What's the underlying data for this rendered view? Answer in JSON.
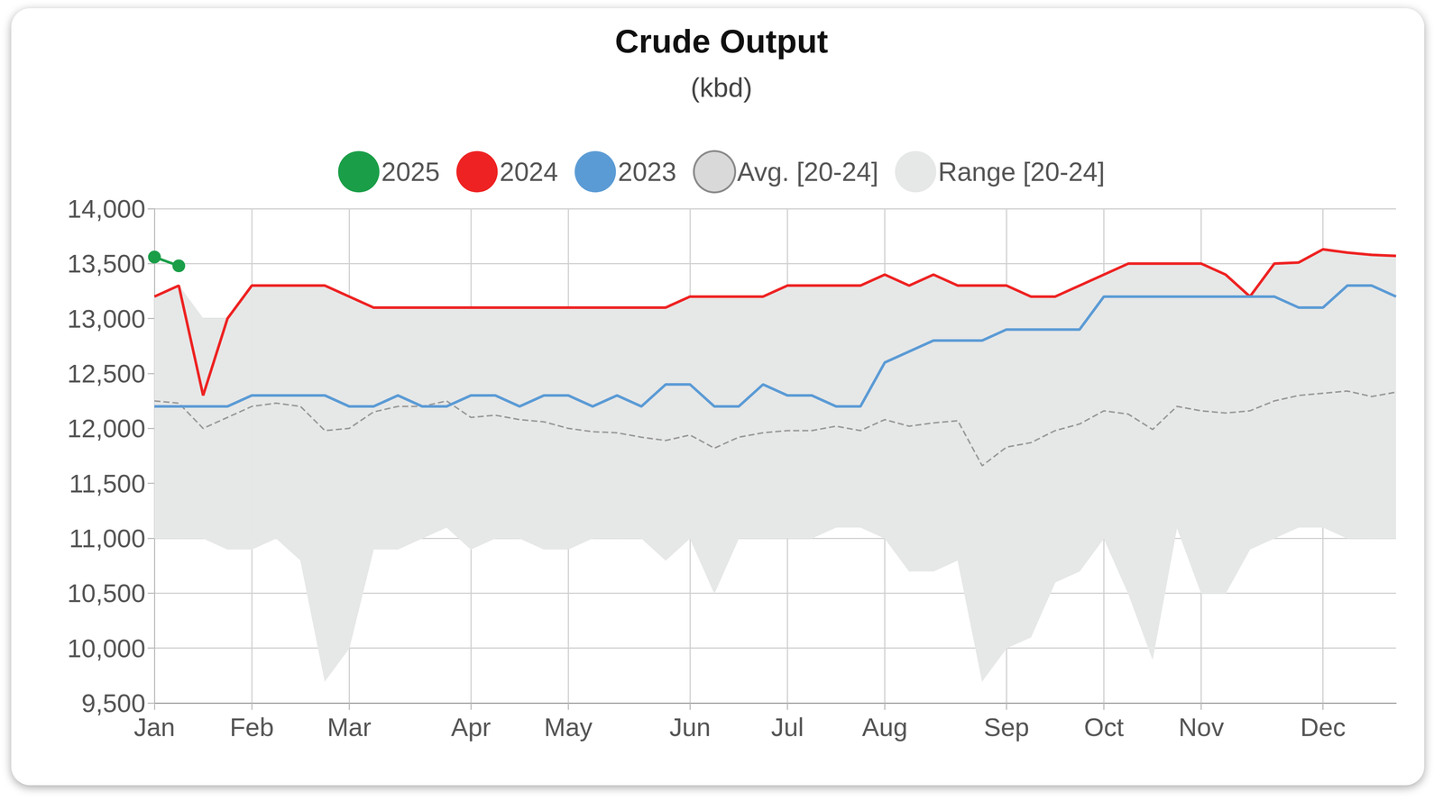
{
  "chart_data": {
    "type": "line",
    "title": "Crude Output",
    "subtitle": "(kbd)",
    "categories": [
      "Jan",
      null,
      null,
      null,
      "Feb",
      null,
      null,
      null,
      "Mar",
      null,
      null,
      null,
      null,
      "Apr",
      null,
      null,
      null,
      "May",
      null,
      null,
      null,
      null,
      "Jun",
      null,
      null,
      null,
      "Jul",
      null,
      null,
      null,
      "Aug",
      null,
      null,
      null,
      null,
      "Sep",
      null,
      null,
      null,
      "Oct",
      null,
      null,
      null,
      "Nov",
      null,
      null,
      null,
      null,
      "Dec",
      null,
      null,
      null
    ],
    "series": [
      {
        "name": "2025",
        "color": "#1a9e48",
        "marker": "circle",
        "line_style": "solid",
        "values": [
          13560,
          13480,
          null,
          null,
          null,
          null,
          null,
          null,
          null,
          null,
          null,
          null,
          null,
          null,
          null,
          null,
          null,
          null,
          null,
          null,
          null,
          null,
          null,
          null,
          null,
          null,
          null,
          null,
          null,
          null,
          null,
          null,
          null,
          null,
          null,
          null,
          null,
          null,
          null,
          null,
          null,
          null,
          null,
          null,
          null,
          null,
          null,
          null,
          null,
          null,
          null,
          null
        ]
      },
      {
        "name": "2024",
        "color": "#ee2222",
        "marker": "none",
        "line_style": "solid",
        "values": [
          13200,
          13300,
          12300,
          13000,
          13300,
          13300,
          13300,
          13300,
          13200,
          13100,
          13100,
          13100,
          13100,
          13100,
          13100,
          13100,
          13100,
          13100,
          13100,
          13100,
          13100,
          13100,
          13200,
          13200,
          13200,
          13200,
          13300,
          13300,
          13300,
          13300,
          13400,
          13300,
          13400,
          13300,
          13300,
          13300,
          13200,
          13200,
          13300,
          13400,
          13500,
          13500,
          13500,
          13500,
          13400,
          13200,
          13500,
          13510,
          13630,
          13600,
          13580,
          13570
        ]
      },
      {
        "name": "2023",
        "color": "#5b9bd5",
        "marker": "none",
        "line_style": "solid",
        "values": [
          12200,
          12200,
          12200,
          12200,
          12300,
          12300,
          12300,
          12300,
          12200,
          12200,
          12300,
          12200,
          12200,
          12300,
          12300,
          12200,
          12300,
          12300,
          12200,
          12300,
          12200,
          12400,
          12400,
          12200,
          12200,
          12400,
          12300,
          12300,
          12200,
          12200,
          12600,
          12700,
          12800,
          12800,
          12800,
          12900,
          12900,
          12900,
          12900,
          13200,
          13200,
          13200,
          13200,
          13200,
          13200,
          13200,
          13200,
          13100,
          13100,
          13300,
          13300,
          13200
        ]
      },
      {
        "name": "Avg. [20-24]",
        "color": "#999999",
        "marker": "none",
        "line_style": "dashed",
        "values": [
          12250,
          12230,
          12000,
          12100,
          12200,
          12230,
          12200,
          11980,
          12000,
          12150,
          12200,
          12200,
          12250,
          12100,
          12120,
          12080,
          12060,
          12000,
          11970,
          11960,
          11920,
          11890,
          11940,
          11820,
          11920,
          11960,
          11980,
          11980,
          12020,
          11980,
          12080,
          12020,
          12050,
          12070,
          11660,
          11830,
          11870,
          11980,
          12040,
          12160,
          12130,
          11990,
          12200,
          12160,
          12140,
          12160,
          12250,
          12300,
          12320,
          12340,
          12290,
          12330
        ]
      }
    ],
    "range": {
      "name": "Range [20-24]",
      "color": "#e6e7e7",
      "upper": [
        13200,
        13300,
        13000,
        13000,
        13300,
        13300,
        13300,
        13300,
        13200,
        13100,
        13100,
        13100,
        13100,
        13100,
        13100,
        13100,
        13100,
        13100,
        13100,
        13100,
        13100,
        13100,
        13200,
        13200,
        13200,
        13200,
        13300,
        13300,
        13300,
        13300,
        13400,
        13300,
        13400,
        13300,
        13300,
        13300,
        13200,
        13200,
        13300,
        13400,
        13500,
        13500,
        13500,
        13500,
        13400,
        13200,
        13500,
        13510,
        13630,
        13600,
        13580,
        13570
      ],
      "lower": [
        11000,
        11000,
        11000,
        10900,
        10900,
        11000,
        10800,
        9700,
        10000,
        10900,
        10900,
        11000,
        11100,
        10900,
        11000,
        11000,
        10900,
        10900,
        11000,
        11000,
        11000,
        10800,
        11000,
        10500,
        11000,
        11000,
        11000,
        11000,
        11100,
        11100,
        11000,
        10700,
        10700,
        10800,
        9700,
        10000,
        10100,
        10600,
        10700,
        11000,
        10500,
        9900,
        11100,
        10500,
        10500,
        10900,
        11000,
        11100,
        11100,
        11000,
        11000,
        11000
      ]
    },
    "ylim": [
      9500,
      14000
    ],
    "yticks": [
      {
        "value": 9500,
        "label": "9,500"
      },
      {
        "value": 10000,
        "label": "10,000"
      },
      {
        "value": 10500,
        "label": "10,500"
      },
      {
        "value": 11000,
        "label": "11,000"
      },
      {
        "value": 11500,
        "label": "11,500"
      },
      {
        "value": 12000,
        "label": "12,000"
      },
      {
        "value": 12500,
        "label": "12,500"
      },
      {
        "value": 13000,
        "label": "13,000"
      },
      {
        "value": 13500,
        "label": "13,500"
      },
      {
        "value": 14000,
        "label": "14,000"
      }
    ],
    "grid": true,
    "legend": "top"
  }
}
